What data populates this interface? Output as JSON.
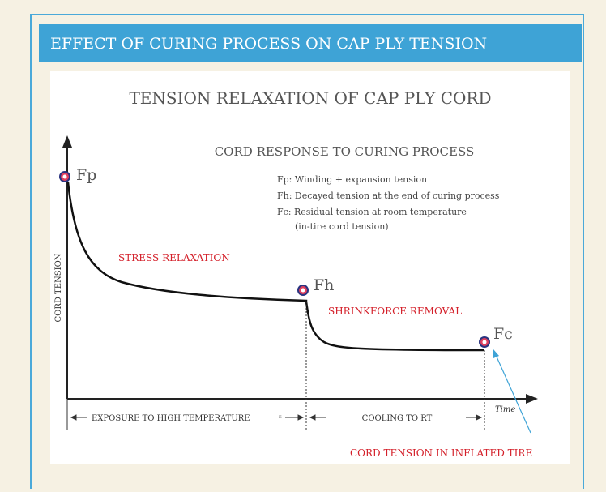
{
  "header": {
    "title": "EFFECT OF CURING PROCESS ON CAP PLY TENSION"
  },
  "diagram": {
    "title": "TENSION RELAXATION OF CAP PLY CORD",
    "subtitle": "CORD RESPONSE TO CURING PROCESS",
    "legend": [
      "Fp: Winding + expansion tension",
      "Fh: Decayed tension at the end of curing process",
      "Fc: Residual tension at room temperature",
      "(in-tire cord tension)"
    ],
    "points": [
      "Fp",
      "Fh",
      "Fc"
    ],
    "annotations": [
      "STRESS RELAXATION",
      "SHRINKFORCE REMOVAL",
      "CORD TENSION IN INFLATED TIRE"
    ],
    "y_axis_label": "CORD TENSION",
    "x_axis_label": "Time",
    "phases": [
      "EXPOSURE TO HIGH TEMPERATURE",
      "E",
      "COOLING TO RT"
    ]
  }
}
